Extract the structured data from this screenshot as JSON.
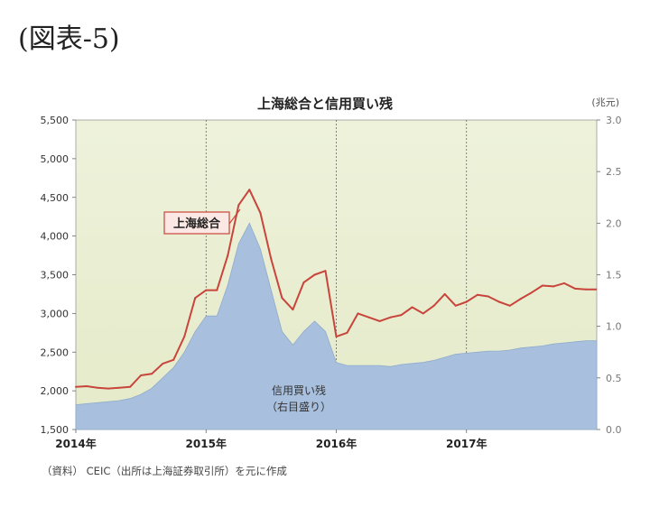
{
  "figure_label": "(図表-5)",
  "source_note": "（資料） CEIC（出所は上海証券取引所）を元に作成",
  "chart_data": {
    "type": "line",
    "title": "上海総合と信用買い残",
    "right_unit": "(兆元)",
    "xlabel": "",
    "x_ticks": [
      "2014年",
      "2015年",
      "2016年",
      "2017年"
    ],
    "x_range": [
      "2014-01",
      "2018-01"
    ],
    "left_axis": {
      "ylim": [
        1500,
        5500
      ],
      "ticks": [
        "1,500",
        "2,000",
        "2,500",
        "3,000",
        "3,500",
        "4,000",
        "4,500",
        "5,000",
        "5,500"
      ]
    },
    "right_axis": {
      "ylim": [
        0.0,
        3.0
      ],
      "ticks": [
        "0.0",
        "0.5",
        "1.0",
        "1.5",
        "2.0",
        "2.5",
        "3.0"
      ]
    },
    "grid": "vertical dashed at year boundaries",
    "series": [
      {
        "name": "上海総合",
        "axis": "left",
        "color": "#c8453c",
        "x": [
          "2014-01",
          "2014-02",
          "2014-03",
          "2014-04",
          "2014-05",
          "2014-06",
          "2014-07",
          "2014-08",
          "2014-09",
          "2014-10",
          "2014-11",
          "2014-12",
          "2015-01",
          "2015-02",
          "2015-03",
          "2015-04",
          "2015-05",
          "2015-06",
          "2015-07",
          "2015-08",
          "2015-09",
          "2015-10",
          "2015-11",
          "2015-12",
          "2016-01",
          "2016-02",
          "2016-03",
          "2016-04",
          "2016-05",
          "2016-06",
          "2016-07",
          "2016-08",
          "2016-09",
          "2016-10",
          "2016-11",
          "2016-12",
          "2017-01",
          "2017-02",
          "2017-03",
          "2017-04",
          "2017-05",
          "2017-06",
          "2017-07",
          "2017-08",
          "2017-09",
          "2017-10",
          "2017-11",
          "2017-12"
        ],
        "values": [
          2050,
          2060,
          2040,
          2030,
          2040,
          2050,
          2200,
          2220,
          2350,
          2400,
          2700,
          3200,
          3300,
          3300,
          3750,
          4400,
          4600,
          4300,
          3700,
          3200,
          3050,
          3400,
          3500,
          3550,
          2700,
          2750,
          3000,
          2950,
          2900,
          2950,
          2980,
          3080,
          3000,
          3100,
          3250,
          3100,
          3150,
          3240,
          3220,
          3150,
          3100,
          3190,
          3270,
          3360,
          3350,
          3390,
          3320,
          3310
        ]
      },
      {
        "name": "信用買い残 (右目盛り)",
        "axis": "right",
        "color": "#a8c0dd",
        "x": [
          "2014-01",
          "2014-02",
          "2014-03",
          "2014-04",
          "2014-05",
          "2014-06",
          "2014-07",
          "2014-08",
          "2014-09",
          "2014-10",
          "2014-11",
          "2014-12",
          "2015-01",
          "2015-02",
          "2015-03",
          "2015-04",
          "2015-05",
          "2015-06",
          "2015-07",
          "2015-08",
          "2015-09",
          "2015-10",
          "2015-11",
          "2015-12",
          "2016-01",
          "2016-02",
          "2016-03",
          "2016-04",
          "2016-05",
          "2016-06",
          "2016-07",
          "2016-08",
          "2016-09",
          "2016-10",
          "2016-11",
          "2016-12",
          "2017-01",
          "2017-02",
          "2017-03",
          "2017-04",
          "2017-05",
          "2017-06",
          "2017-07",
          "2017-08",
          "2017-09",
          "2017-10",
          "2017-11",
          "2017-12"
        ],
        "values": [
          0.24,
          0.25,
          0.26,
          0.27,
          0.28,
          0.3,
          0.34,
          0.4,
          0.5,
          0.6,
          0.75,
          0.95,
          1.1,
          1.1,
          1.4,
          1.8,
          2.0,
          1.75,
          1.35,
          0.95,
          0.82,
          0.95,
          1.05,
          0.95,
          0.65,
          0.62,
          0.62,
          0.62,
          0.62,
          0.61,
          0.63,
          0.64,
          0.65,
          0.67,
          0.7,
          0.73,
          0.74,
          0.75,
          0.76,
          0.76,
          0.77,
          0.79,
          0.8,
          0.81,
          0.83,
          0.84,
          0.85,
          0.86
        ]
      }
    ],
    "annotations": [
      {
        "text": "上海総合",
        "style": "callout box"
      },
      {
        "text": "信用買い残",
        "style": "label"
      },
      {
        "text": "（右目盛り）",
        "style": "label"
      }
    ]
  }
}
